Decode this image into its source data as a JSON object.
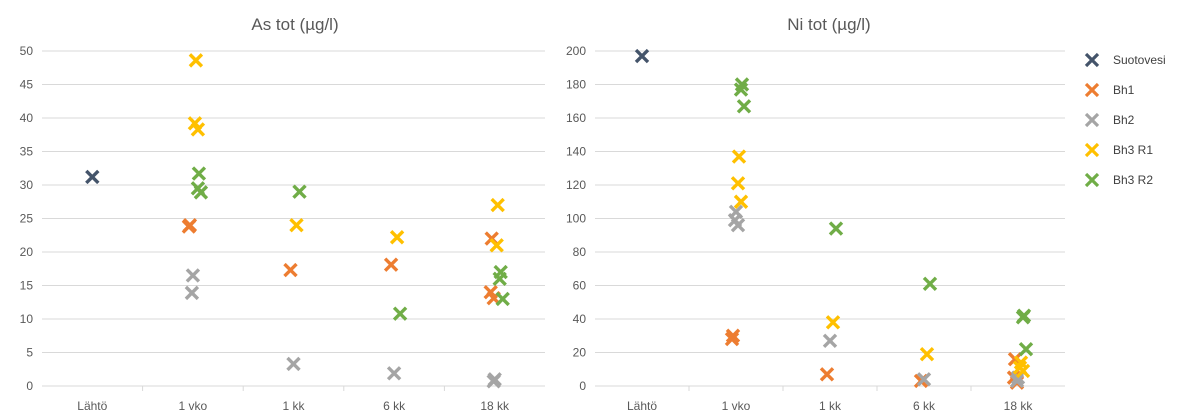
{
  "chart_data": [
    {
      "type": "scatter",
      "title": "As tot (µg/l)",
      "categories": [
        "Lähtö",
        "1 vko",
        "1 kk",
        "6 kk",
        "18 kk"
      ],
      "ylim": [
        0,
        50
      ],
      "yticks": [
        0,
        5,
        10,
        15,
        20,
        25,
        30,
        35,
        40,
        45,
        50
      ],
      "grid": true,
      "series": [
        {
          "name": "Suotovesi",
          "points": [
            {
              "x": "Lähtö",
              "y": 31.2
            }
          ]
        },
        {
          "name": "Bh1",
          "points": [
            {
              "x": "1 vko",
              "y": 24.0
            },
            {
              "x": "1 vko",
              "y": 23.8
            },
            {
              "x": "1 kk",
              "y": 17.3
            },
            {
              "x": "6 kk",
              "y": 18.1
            },
            {
              "x": "18 kk",
              "y": 22.0
            },
            {
              "x": "18 kk",
              "y": 14.0
            },
            {
              "x": "18 kk",
              "y": 13.1
            }
          ]
        },
        {
          "name": "Bh2",
          "points": [
            {
              "x": "1 vko",
              "y": 16.5
            },
            {
              "x": "1 vko",
              "y": 13.9
            },
            {
              "x": "1 kk",
              "y": 3.3
            },
            {
              "x": "6 kk",
              "y": 1.9
            },
            {
              "x": "18 kk",
              "y": 1.0
            },
            {
              "x": "18 kk",
              "y": 0.7
            }
          ]
        },
        {
          "name": "Bh3 R1",
          "points": [
            {
              "x": "1 vko",
              "y": 48.6
            },
            {
              "x": "1 vko",
              "y": 39.2
            },
            {
              "x": "1 vko",
              "y": 38.3
            },
            {
              "x": "1 kk",
              "y": 24.0
            },
            {
              "x": "6 kk",
              "y": 22.2
            },
            {
              "x": "18 kk",
              "y": 27.0
            },
            {
              "x": "18 kk",
              "y": 21.0
            }
          ]
        },
        {
          "name": "Bh3 R2",
          "points": [
            {
              "x": "1 vko",
              "y": 31.7
            },
            {
              "x": "1 vko",
              "y": 29.5
            },
            {
              "x": "1 vko",
              "y": 28.9
            },
            {
              "x": "1 kk",
              "y": 29.0
            },
            {
              "x": "6 kk",
              "y": 10.8
            },
            {
              "x": "18 kk",
              "y": 17.0
            },
            {
              "x": "18 kk",
              "y": 16.0
            },
            {
              "x": "18 kk",
              "y": 13.0
            }
          ]
        }
      ]
    },
    {
      "type": "scatter",
      "title": "Ni tot (µg/l)",
      "categories": [
        "Lähtö",
        "1 vko",
        "1 kk",
        "6 kk",
        "18 kk"
      ],
      "ylim": [
        0,
        200
      ],
      "yticks": [
        0,
        20,
        40,
        60,
        80,
        100,
        120,
        140,
        160,
        180,
        200
      ],
      "grid": true,
      "series": [
        {
          "name": "Suotovesi",
          "points": [
            {
              "x": "Lähtö",
              "y": 197
            }
          ]
        },
        {
          "name": "Bh1",
          "points": [
            {
              "x": "1 vko",
              "y": 30
            },
            {
              "x": "1 vko",
              "y": 28
            },
            {
              "x": "1 kk",
              "y": 7
            },
            {
              "x": "6 kk",
              "y": 3
            },
            {
              "x": "18 kk",
              "y": 16
            },
            {
              "x": "18 kk",
              "y": 5
            },
            {
              "x": "18 kk",
              "y": 2
            }
          ]
        },
        {
          "name": "Bh2",
          "points": [
            {
              "x": "1 vko",
              "y": 104
            },
            {
              "x": "1 vko",
              "y": 99
            },
            {
              "x": "1 vko",
              "y": 96
            },
            {
              "x": "1 kk",
              "y": 27
            },
            {
              "x": "6 kk",
              "y": 4
            },
            {
              "x": "18 kk",
              "y": 5
            },
            {
              "x": "18 kk",
              "y": 3
            }
          ]
        },
        {
          "name": "Bh3 R1",
          "points": [
            {
              "x": "1 vko",
              "y": 137
            },
            {
              "x": "1 vko",
              "y": 121
            },
            {
              "x": "1 vko",
              "y": 110
            },
            {
              "x": "1 kk",
              "y": 38
            },
            {
              "x": "6 kk",
              "y": 19
            },
            {
              "x": "18 kk",
              "y": 14
            },
            {
              "x": "18 kk",
              "y": 11
            },
            {
              "x": "18 kk",
              "y": 9
            }
          ]
        },
        {
          "name": "Bh3 R2",
          "points": [
            {
              "x": "1 vko",
              "y": 180
            },
            {
              "x": "1 vko",
              "y": 177
            },
            {
              "x": "1 vko",
              "y": 167
            },
            {
              "x": "1 kk",
              "y": 94
            },
            {
              "x": "6 kk",
              "y": 61
            },
            {
              "x": "18 kk",
              "y": 42
            },
            {
              "x": "18 kk",
              "y": 41
            },
            {
              "x": "18 kk",
              "y": 22
            }
          ]
        }
      ]
    }
  ],
  "legend": {
    "placement": "right",
    "items": [
      {
        "label": "Suotovesi",
        "color": "#44546a"
      },
      {
        "label": "Bh1",
        "color": "#ed7d31"
      },
      {
        "label": "Bh2",
        "color": "#a5a5a5"
      },
      {
        "label": "Bh3 R1",
        "color": "#ffc000"
      },
      {
        "label": "Bh3 R2",
        "color": "#70ad47"
      }
    ]
  }
}
